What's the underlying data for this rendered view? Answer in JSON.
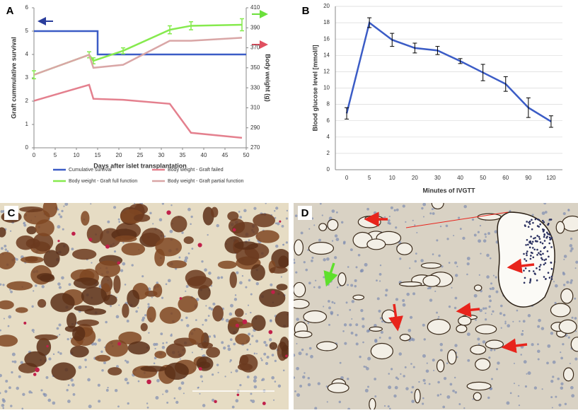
{
  "chart_data": [
    {
      "type": "line",
      "panel": "A",
      "xlabel": "Days after islet transplantation",
      "ylabel": "Graft cummulative survival",
      "y2label": "Body weight (g)",
      "xlim": [
        0,
        50
      ],
      "xticks": [
        0,
        5,
        10,
        15,
        20,
        25,
        30,
        35,
        40,
        45,
        50
      ],
      "ylim": [
        0,
        6
      ],
      "yticks": [
        0,
        1,
        2,
        3,
        4,
        5,
        6
      ],
      "y2lim": [
        270,
        410
      ],
      "y2ticks": [
        270,
        290,
        310,
        330,
        350,
        370,
        390,
        410
      ],
      "grid": false,
      "legend": "bottom",
      "series": [
        {
          "name": "Cumulative survival",
          "color": "#3b5cc6",
          "x": [
            0,
            15,
            15,
            50
          ],
          "values": [
            5,
            5,
            4,
            4
          ]
        },
        {
          "name": "Body weight - Graft failed",
          "color": "#e4808e",
          "axis": "y2",
          "x": [
            0,
            13,
            14,
            21,
            32,
            37,
            49
          ],
          "values": [
            317,
            333,
            319,
            318,
            314,
            285,
            280
          ]
        },
        {
          "name": "Body weight - Graft full function",
          "color": "#86ea4e",
          "axis": "y2",
          "x": [
            0,
            13,
            14,
            21,
            32,
            37,
            49
          ],
          "values": [
            343,
            363,
            357,
            367,
            388,
            392,
            393
          ],
          "errors": [
            4,
            3,
            3,
            3,
            4,
            4,
            6
          ]
        },
        {
          "name": "Body weight - Graft partial function",
          "color": "#d9a6a6",
          "axis": "y2",
          "x": [
            0,
            13,
            14,
            21,
            32,
            37,
            49
          ],
          "values": [
            343,
            363,
            350,
            353,
            377,
            377,
            380
          ]
        }
      ]
    },
    {
      "type": "line",
      "panel": "B",
      "xlabel": "Minutes of IVGTT",
      "ylabel": "Blood glucose level [mmol/l]",
      "categories": [
        "0",
        "5",
        "10",
        "20",
        "30",
        "40",
        "50",
        "60",
        "90",
        "120"
      ],
      "ylim": [
        0,
        20
      ],
      "yticks": [
        0,
        2,
        4,
        6,
        8,
        10,
        12,
        14,
        16,
        18,
        20
      ],
      "grid": true,
      "series": [
        {
          "color": "#3b5cc6",
          "values": [
            6.9,
            18.0,
            15.9,
            14.9,
            14.6,
            13.3,
            11.9,
            10.5,
            7.6,
            5.9
          ],
          "errors": [
            0.7,
            0.6,
            0.8,
            0.6,
            0.5,
            0.3,
            1.0,
            0.9,
            1.2,
            0.7
          ]
        }
      ]
    }
  ],
  "images": [
    {
      "label": "C"
    },
    {
      "label": "D"
    }
  ]
}
